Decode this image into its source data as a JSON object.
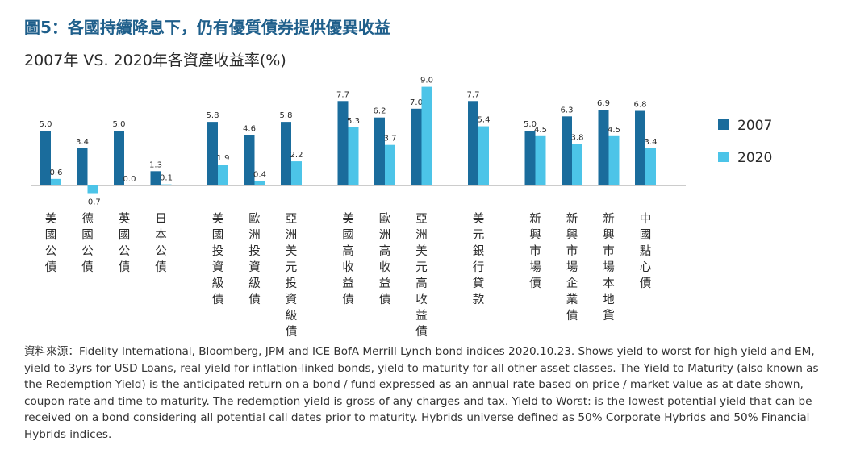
{
  "figure_title": "圖5：各國持續降息下，仍有優質債券提供優異收益",
  "chart_data": {
    "type": "bar",
    "title": "2007年 VS. 2020年各資產收益率(%)",
    "xlabel": "",
    "ylabel": "",
    "ylim": [
      -0.7,
      9.0
    ],
    "grid": false,
    "legend_position": "right",
    "categories": [
      "美國公債",
      "德國公債",
      "英國公債",
      "日本公債",
      "美國投資級債",
      "歐洲投資級債",
      "亞洲美元投資級債",
      "美國高收益債",
      "歐洲高收益債",
      "亞洲美元高收益債",
      "美元銀行貸款",
      "新興市場債",
      "新興市場企業債",
      "新興市場本地貨",
      "中國點心債"
    ],
    "groups": [
      [
        0,
        1,
        2,
        3
      ],
      [
        4,
        5,
        6
      ],
      [
        7,
        8,
        9
      ],
      [
        10
      ],
      [
        11,
        12,
        13,
        14
      ]
    ],
    "series": [
      {
        "name": "2007",
        "color": "#1a6c9c",
        "values": [
          5.0,
          3.4,
          5.0,
          1.3,
          5.8,
          4.6,
          5.8,
          7.7,
          6.2,
          7.0,
          7.7,
          5.0,
          6.3,
          6.9,
          6.8
        ]
      },
      {
        "name": "2020",
        "color": "#4cc4e8",
        "values": [
          0.6,
          -0.7,
          0.0,
          0.1,
          1.9,
          0.4,
          2.2,
          5.3,
          3.7,
          9.0,
          5.4,
          4.5,
          3.8,
          4.5,
          3.4
        ]
      }
    ]
  },
  "source_note": "資料來源：Fidelity International, Bloomberg, JPM and ICE BofA Merrill Lynch bond indices 2020.10.23. Shows yield to worst for high yield and EM, yield to 3yrs for USD Loans, real yield for inflation-linked bonds, yield to maturity for all other asset classes. The Yield to Maturity (also known as the Redemption Yield) is the anticipated return on a bond / fund expressed as an annual rate based on price / market value as at date shown, coupon rate and time to maturity. The redemption yield is gross of any charges and tax. Yield to Worst: is the lowest potential yield that can be received on a bond considering all potential call dates prior to maturity. Hybrids universe defined as 50% Corporate Hybrids and 50% Financial Hybrids indices."
}
